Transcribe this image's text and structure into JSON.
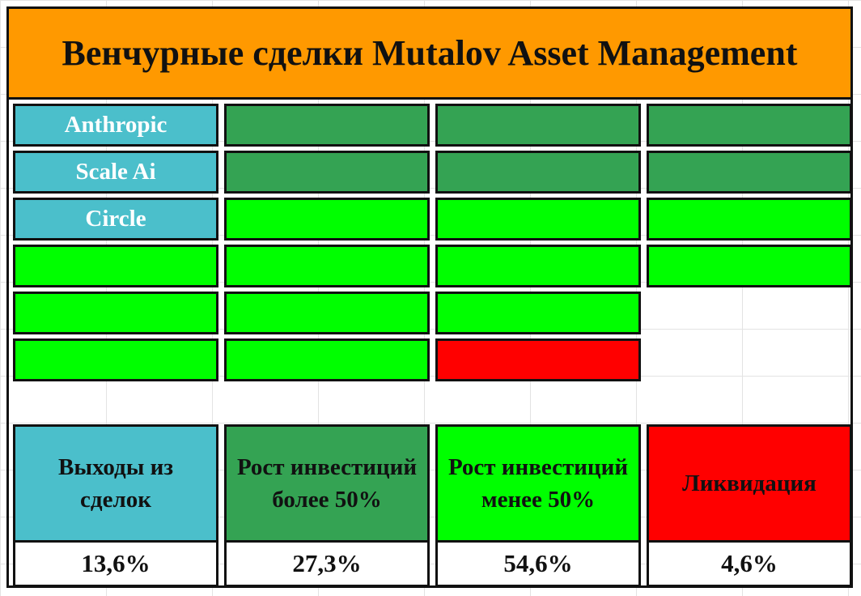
{
  "title": "Венчурные сделки Mutalov Asset Management",
  "colors": {
    "header": "#ff9900",
    "exits": "#4bbfcb",
    "growth_over_50": "#34a353",
    "growth_under_50": "#00ff00",
    "liquidation": "#ff0000",
    "empty": "#ffffff"
  },
  "chart_data": {
    "type": "table",
    "title": "Венчурные сделки Mutalov Asset Management",
    "grid_columns": 4,
    "grid_rows": 6,
    "cells": [
      [
        {
          "status": "exits",
          "label": "Anthropic"
        },
        {
          "status": "growth_over_50",
          "label": ""
        },
        {
          "status": "growth_over_50",
          "label": ""
        },
        {
          "status": "growth_over_50",
          "label": ""
        }
      ],
      [
        {
          "status": "exits",
          "label": "Scale Ai"
        },
        {
          "status": "growth_over_50",
          "label": ""
        },
        {
          "status": "growth_over_50",
          "label": ""
        },
        {
          "status": "growth_over_50",
          "label": ""
        }
      ],
      [
        {
          "status": "exits",
          "label": "Circle"
        },
        {
          "status": "growth_under_50",
          "label": ""
        },
        {
          "status": "growth_under_50",
          "label": ""
        },
        {
          "status": "growth_under_50",
          "label": ""
        }
      ],
      [
        {
          "status": "growth_under_50",
          "label": ""
        },
        {
          "status": "growth_under_50",
          "label": ""
        },
        {
          "status": "growth_under_50",
          "label": ""
        },
        {
          "status": "growth_under_50",
          "label": ""
        }
      ],
      [
        {
          "status": "growth_under_50",
          "label": ""
        },
        {
          "status": "growth_under_50",
          "label": ""
        },
        {
          "status": "growth_under_50",
          "label": ""
        },
        {
          "status": "empty",
          "label": ""
        }
      ],
      [
        {
          "status": "growth_under_50",
          "label": ""
        },
        {
          "status": "growth_under_50",
          "label": ""
        },
        {
          "status": "liquidation",
          "label": ""
        },
        {
          "status": "empty",
          "label": ""
        }
      ]
    ],
    "legend": [
      {
        "status": "exits",
        "label": "Выходы из сделок",
        "value": "13,6%"
      },
      {
        "status": "growth_over_50",
        "label": "Рост инвестиций более 50%",
        "value": "27,3%"
      },
      {
        "status": "growth_under_50",
        "label": "Рост инвестиций менее 50%",
        "value": "54,6%"
      },
      {
        "status": "liquidation",
        "label": "Ликвидация",
        "value": "4,6%"
      }
    ]
  }
}
